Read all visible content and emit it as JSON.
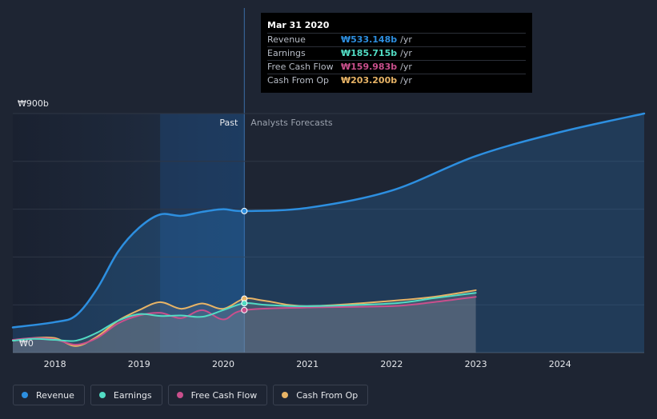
{
  "chart_data": {
    "type": "line",
    "y_top_label": "₩900b",
    "y_zero_label": "₩0",
    "ylim": [
      0,
      900
    ],
    "xlim": [
      2017.5,
      2025.0
    ],
    "x_ticks": [
      "2018",
      "2019",
      "2020",
      "2021",
      "2022",
      "2023",
      "2024"
    ],
    "past_label": "Past",
    "forecast_label": "Analysts Forecasts",
    "forecast_start": 2020.25,
    "legend_position": "bottom-left",
    "series": [
      {
        "name": "Revenue",
        "color": "#2d8fe0",
        "points": [
          [
            2017.5,
            95
          ],
          [
            2018.0,
            115
          ],
          [
            2018.25,
            140
          ],
          [
            2018.5,
            240
          ],
          [
            2018.75,
            380
          ],
          [
            2019.0,
            470
          ],
          [
            2019.25,
            520
          ],
          [
            2019.5,
            515
          ],
          [
            2019.75,
            530
          ],
          [
            2020.0,
            540
          ],
          [
            2020.25,
            533
          ],
          [
            2021.0,
            545
          ],
          [
            2022.0,
            610
          ],
          [
            2023.0,
            740
          ],
          [
            2024.0,
            830
          ],
          [
            2025.0,
            900
          ]
        ]
      },
      {
        "name": "Earnings",
        "color": "#52dcc4",
        "points": [
          [
            2017.5,
            45
          ],
          [
            2017.75,
            52
          ],
          [
            2018.0,
            48
          ],
          [
            2018.25,
            45
          ],
          [
            2018.5,
            75
          ],
          [
            2018.75,
            120
          ],
          [
            2019.0,
            145
          ],
          [
            2019.25,
            138
          ],
          [
            2019.5,
            140
          ],
          [
            2019.75,
            135
          ],
          [
            2020.0,
            160
          ],
          [
            2020.25,
            186
          ],
          [
            2020.5,
            180
          ],
          [
            2021.0,
            175
          ],
          [
            2022.0,
            185
          ],
          [
            2022.5,
            205
          ],
          [
            2023.0,
            225
          ]
        ]
      },
      {
        "name": "Free Cash Flow",
        "color": "#c94f8c",
        "points": [
          [
            2017.5,
            48
          ],
          [
            2017.75,
            55
          ],
          [
            2018.0,
            50
          ],
          [
            2018.25,
            30
          ],
          [
            2018.5,
            55
          ],
          [
            2018.75,
            110
          ],
          [
            2019.0,
            140
          ],
          [
            2019.25,
            150
          ],
          [
            2019.5,
            130
          ],
          [
            2019.75,
            160
          ],
          [
            2020.0,
            125
          ],
          [
            2020.25,
            160
          ],
          [
            2021.0,
            170
          ],
          [
            2022.0,
            175
          ],
          [
            2022.5,
            190
          ],
          [
            2023.0,
            210
          ]
        ]
      },
      {
        "name": "Cash From Op",
        "color": "#e8b466",
        "points": [
          [
            2017.5,
            45
          ],
          [
            2017.75,
            55
          ],
          [
            2018.0,
            55
          ],
          [
            2018.25,
            25
          ],
          [
            2018.5,
            60
          ],
          [
            2018.75,
            120
          ],
          [
            2019.0,
            160
          ],
          [
            2019.25,
            190
          ],
          [
            2019.5,
            165
          ],
          [
            2019.75,
            185
          ],
          [
            2020.0,
            165
          ],
          [
            2020.25,
            203
          ],
          [
            2020.5,
            195
          ],
          [
            2021.0,
            175
          ],
          [
            2022.0,
            195
          ],
          [
            2022.5,
            210
          ],
          [
            2023.0,
            235
          ]
        ]
      }
    ]
  },
  "tooltip": {
    "date": "Mar 31 2020",
    "rows": [
      {
        "label": "Revenue",
        "value": "₩533.148b",
        "unit": "/yr",
        "color": "#2d8fe0"
      },
      {
        "label": "Earnings",
        "value": "₩185.715b",
        "unit": "/yr",
        "color": "#52dcc4"
      },
      {
        "label": "Free Cash Flow",
        "value": "₩159.983b",
        "unit": "/yr",
        "color": "#c94f8c"
      },
      {
        "label": "Cash From Op",
        "value": "₩203.200b",
        "unit": "/yr",
        "color": "#e8b466"
      }
    ]
  },
  "legend": [
    {
      "label": "Revenue",
      "color": "#2d8fe0"
    },
    {
      "label": "Earnings",
      "color": "#52dcc4"
    },
    {
      "label": "Free Cash Flow",
      "color": "#c94f8c"
    },
    {
      "label": "Cash From Op",
      "color": "#e8b466"
    }
  ]
}
